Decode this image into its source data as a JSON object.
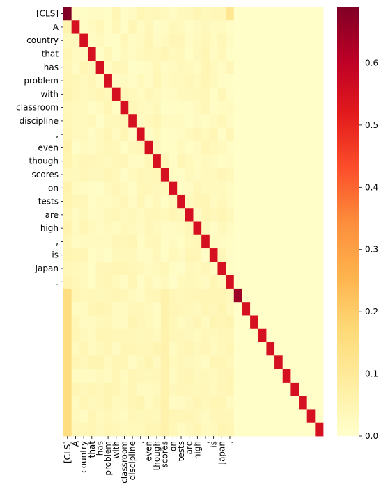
{
  "chart_data": {
    "type": "heatmap",
    "title": "",
    "xlabel": "",
    "ylabel": "",
    "row_labels": [
      "[CLS]",
      "A",
      "country",
      "that",
      "has",
      "problem",
      "with",
      "classroom",
      "discipline",
      ",",
      "even",
      "though",
      "scores",
      "on",
      "tests",
      "are",
      "high",
      ",",
      "is",
      "Japan",
      "."
    ],
    "col_labels": [
      "[CLS]",
      "A",
      "country",
      "that",
      "has",
      "problem",
      "with",
      "classroom",
      "discipline",
      ",",
      "even",
      "though",
      "scores",
      "on",
      "tests",
      "are",
      "high",
      ",",
      "is",
      "Japan",
      "."
    ],
    "n_rows": 32,
    "n_cols": 32,
    "colorbar": {
      "min": 0.0,
      "max": 0.69,
      "ticks": [
        0.0,
        0.1,
        0.2,
        0.3,
        0.4,
        0.5,
        0.6
      ],
      "tick_labels": [
        "0.0",
        "0.1",
        "0.2",
        "0.3",
        "0.4",
        "0.5",
        "0.6"
      ],
      "colormap": "YlOrRd"
    },
    "description_values": {
      "diagonal_value": 0.55,
      "cls_self_value": 0.69,
      "row22_diag_value": 0.65,
      "background_value": 0.01,
      "padding_col0_value": 0.15
    }
  }
}
